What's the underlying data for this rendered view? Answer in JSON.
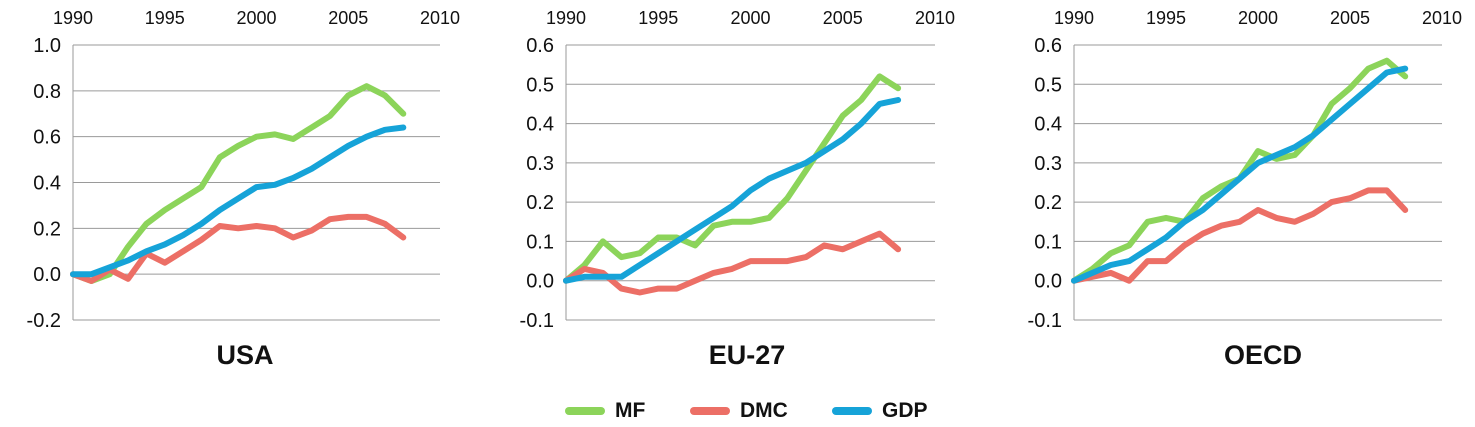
{
  "colors": {
    "MF": "#8cd45a",
    "DMC": "#ec6f66",
    "GDP": "#16a3d8"
  },
  "legend": [
    {
      "name": "MF",
      "label": "MF"
    },
    {
      "name": "DMC",
      "label": "DMC"
    },
    {
      "name": "GDP",
      "label": "GDP"
    }
  ],
  "chart_data": [
    {
      "type": "line",
      "title": "USA",
      "x_ticks": [
        1990,
        1995,
        2000,
        2005,
        2010
      ],
      "xlim": [
        1990,
        2010
      ],
      "ylim": [
        -0.2,
        1.0
      ],
      "y_ticks": [
        "-0.2",
        "0.0",
        "0.2",
        "0.4",
        "0.6",
        "0.8",
        "1.0"
      ],
      "y_tick_values": [
        -0.2,
        0.0,
        0.2,
        0.4,
        0.6,
        0.8,
        1.0
      ],
      "grid": true,
      "x": [
        1990,
        1991,
        1992,
        1993,
        1994,
        1995,
        1996,
        1997,
        1998,
        1999,
        2000,
        2001,
        2002,
        2003,
        2004,
        2005,
        2006,
        2007,
        2008
      ],
      "series": [
        {
          "name": "MF",
          "values": [
            0.0,
            -0.03,
            0.0,
            0.12,
            0.22,
            0.28,
            0.33,
            0.38,
            0.51,
            0.56,
            0.6,
            0.61,
            0.59,
            0.64,
            0.69,
            0.78,
            0.82,
            0.78,
            0.7
          ]
        },
        {
          "name": "DMC",
          "values": [
            0.0,
            -0.03,
            0.02,
            -0.02,
            0.09,
            0.05,
            0.1,
            0.15,
            0.21,
            0.2,
            0.21,
            0.2,
            0.16,
            0.19,
            0.24,
            0.25,
            0.25,
            0.22,
            0.16
          ]
        },
        {
          "name": "GDP",
          "values": [
            0.0,
            0.0,
            0.03,
            0.06,
            0.1,
            0.13,
            0.17,
            0.22,
            0.28,
            0.33,
            0.38,
            0.39,
            0.42,
            0.46,
            0.51,
            0.56,
            0.6,
            0.63,
            0.64
          ]
        }
      ]
    },
    {
      "type": "line",
      "title": "EU-27",
      "x_ticks": [
        1990,
        1995,
        2000,
        2005,
        2010
      ],
      "xlim": [
        1990,
        2010
      ],
      "ylim": [
        -0.1,
        0.6
      ],
      "y_ticks": [
        "-0.1",
        "0.0",
        "0.1",
        "0.2",
        "0.3",
        "0.4",
        "0.5",
        "0.6"
      ],
      "y_tick_values": [
        -0.1,
        0.0,
        0.1,
        0.2,
        0.3,
        0.4,
        0.5,
        0.6
      ],
      "grid": true,
      "x": [
        1990,
        1991,
        1992,
        1993,
        1994,
        1995,
        1996,
        1997,
        1998,
        1999,
        2000,
        2001,
        2002,
        2003,
        2004,
        2005,
        2006,
        2007,
        2008
      ],
      "series": [
        {
          "name": "MF",
          "values": [
            0.0,
            0.04,
            0.1,
            0.06,
            0.07,
            0.11,
            0.11,
            0.09,
            0.14,
            0.15,
            0.15,
            0.16,
            0.21,
            0.28,
            0.35,
            0.42,
            0.46,
            0.52,
            0.49
          ]
        },
        {
          "name": "DMC",
          "values": [
            0.0,
            0.03,
            0.02,
            -0.02,
            -0.03,
            -0.02,
            -0.02,
            0.0,
            0.02,
            0.03,
            0.05,
            0.05,
            0.05,
            0.06,
            0.09,
            0.08,
            0.1,
            0.12,
            0.08
          ]
        },
        {
          "name": "GDP",
          "values": [
            0.0,
            0.01,
            0.01,
            0.01,
            0.04,
            0.07,
            0.1,
            0.13,
            0.16,
            0.19,
            0.23,
            0.26,
            0.28,
            0.3,
            0.33,
            0.36,
            0.4,
            0.45,
            0.46
          ]
        }
      ]
    },
    {
      "type": "line",
      "title": "OECD",
      "x_ticks": [
        1990,
        1995,
        2000,
        2005,
        2010
      ],
      "xlim": [
        1990,
        2010
      ],
      "ylim": [
        -0.1,
        0.6
      ],
      "y_ticks": [
        "-0.1",
        "0.0",
        "0.1",
        "0.2",
        "0.3",
        "0.4",
        "0.5",
        "0.6"
      ],
      "y_tick_values": [
        -0.1,
        0.0,
        0.1,
        0.2,
        0.3,
        0.4,
        0.5,
        0.6
      ],
      "grid": true,
      "x": [
        1990,
        1991,
        1992,
        1993,
        1994,
        1995,
        1996,
        1997,
        1998,
        1999,
        2000,
        2001,
        2002,
        2003,
        2004,
        2005,
        2006,
        2007,
        2008
      ],
      "series": [
        {
          "name": "MF",
          "values": [
            0.0,
            0.03,
            0.07,
            0.09,
            0.15,
            0.16,
            0.15,
            0.21,
            0.24,
            0.26,
            0.33,
            0.31,
            0.32,
            0.37,
            0.45,
            0.49,
            0.54,
            0.56,
            0.52
          ]
        },
        {
          "name": "DMC",
          "values": [
            0.0,
            0.01,
            0.02,
            0.0,
            0.05,
            0.05,
            0.09,
            0.12,
            0.14,
            0.15,
            0.18,
            0.16,
            0.15,
            0.17,
            0.2,
            0.21,
            0.23,
            0.23,
            0.18
          ]
        },
        {
          "name": "GDP",
          "values": [
            0.0,
            0.02,
            0.04,
            0.05,
            0.08,
            0.11,
            0.15,
            0.18,
            0.22,
            0.26,
            0.3,
            0.32,
            0.34,
            0.37,
            0.41,
            0.45,
            0.49,
            0.53,
            0.54
          ]
        }
      ]
    }
  ]
}
